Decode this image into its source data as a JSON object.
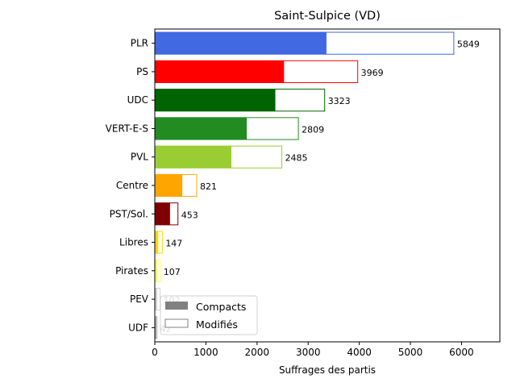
{
  "chart_data": {
    "type": "bar",
    "orientation": "horizontal",
    "title": "Saint-Sulpice (VD)",
    "xlabel": "Suffrages des partis",
    "ylabel": "",
    "xlim": [
      0,
      6750
    ],
    "xticks": [
      0,
      1000,
      2000,
      3000,
      4000,
      5000,
      6000
    ],
    "grid": false,
    "legend_position": "lower-left",
    "categories": [
      "PLR",
      "PS",
      "UDC",
      "VERT-E-S",
      "PVL",
      "Centre",
      "PST/Sol.",
      "Libres",
      "Pirates",
      "PEV",
      "UDF"
    ],
    "colors": [
      "#4169e1",
      "#ff0000",
      "#006400",
      "#228b22",
      "#9acd32",
      "#ffa500",
      "#800000",
      "#ffd700",
      "#ffff66",
      "#d3d3d3",
      "#a9a9a9"
    ],
    "series": [
      {
        "name": "Compacts",
        "values": [
          3350,
          2520,
          2350,
          1790,
          1490,
          530,
          290,
          60,
          40,
          40,
          20
        ]
      },
      {
        "name": "Modifiés",
        "values": [
          2499,
          1449,
          973,
          1019,
          995,
          291,
          163,
          87,
          67,
          62,
          22
        ]
      }
    ],
    "totals": [
      5849,
      3969,
      3323,
      2809,
      2485,
      821,
      453,
      147,
      107,
      102,
      42
    ],
    "legend": {
      "compact_label": "Compacts",
      "compact_color": "#808080",
      "modified_label": "Modifiés",
      "modified_edge": "#808080"
    }
  }
}
